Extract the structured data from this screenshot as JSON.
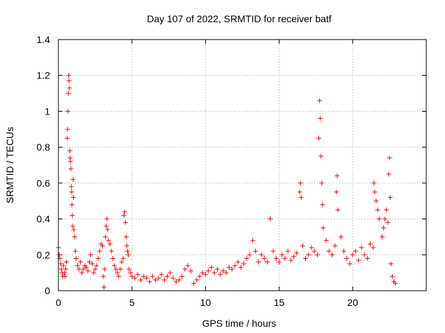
{
  "chart_data": {
    "type": "scatter",
    "title": "Day 107 of 2022, SRMTID for receiver batf",
    "xlabel": "GPS time / hours",
    "ylabel": "SRMTID / TECUs",
    "xlim": [
      0,
      25
    ],
    "ylim": [
      0,
      1.4
    ],
    "xticks": [
      "0",
      "5",
      "10",
      "15",
      "20"
    ],
    "yticks": [
      "0",
      "0.2",
      "0.4",
      "0.6",
      "0.8",
      "1",
      "1.2",
      "1.4"
    ],
    "grid": true,
    "marker": "plus",
    "color": "#ff0000",
    "series": [
      {
        "name": "SRMTID",
        "points": [
          [
            0.0,
            0.24
          ],
          [
            0.05,
            0.2
          ],
          [
            0.1,
            0.18
          ],
          [
            0.15,
            0.15
          ],
          [
            0.2,
            0.12
          ],
          [
            0.25,
            0.1
          ],
          [
            0.3,
            0.08
          ],
          [
            0.35,
            0.14
          ],
          [
            0.4,
            0.1
          ],
          [
            0.45,
            0.08
          ],
          [
            0.5,
            0.12
          ],
          [
            0.55,
            0.16
          ],
          [
            0.6,
            0.85
          ],
          [
            0.62,
            0.9
          ],
          [
            0.65,
            1.0
          ],
          [
            0.68,
            1.1
          ],
          [
            0.7,
            1.2
          ],
          [
            0.72,
            1.17
          ],
          [
            0.75,
            1.13
          ],
          [
            0.78,
            0.78
          ],
          [
            0.8,
            0.74
          ],
          [
            0.82,
            0.72
          ],
          [
            0.85,
            0.68
          ],
          [
            0.88,
            0.58
          ],
          [
            0.9,
            0.55
          ],
          [
            0.92,
            0.48
          ],
          [
            0.95,
            0.42
          ],
          [
            0.98,
            0.36
          ],
          [
            1.0,
            0.62
          ],
          [
            1.02,
            0.52
          ],
          [
            1.05,
            0.34
          ],
          [
            1.1,
            0.3
          ],
          [
            1.15,
            0.22
          ],
          [
            1.2,
            0.18
          ],
          [
            1.3,
            0.14
          ],
          [
            1.4,
            0.12
          ],
          [
            1.5,
            0.16
          ],
          [
            1.6,
            0.1
          ],
          [
            1.7,
            0.12
          ],
          [
            1.8,
            0.14
          ],
          [
            1.9,
            0.13
          ],
          [
            2.0,
            0.11
          ],
          [
            2.1,
            0.16
          ],
          [
            2.2,
            0.2
          ],
          [
            2.3,
            0.15
          ],
          [
            2.4,
            0.1
          ],
          [
            2.5,
            0.12
          ],
          [
            2.6,
            0.14
          ],
          [
            2.7,
            0.18
          ],
          [
            2.8,
            0.22
          ],
          [
            2.9,
            0.26
          ],
          [
            3.0,
            0.25
          ],
          [
            3.05,
            0.08
          ],
          [
            3.1,
            0.02
          ],
          [
            3.15,
            0.12
          ],
          [
            3.2,
            0.3
          ],
          [
            3.25,
            0.36
          ],
          [
            3.3,
            0.4
          ],
          [
            3.35,
            0.34
          ],
          [
            3.4,
            0.28
          ],
          [
            3.5,
            0.26
          ],
          [
            3.6,
            0.22
          ],
          [
            3.7,
            0.18
          ],
          [
            3.8,
            0.14
          ],
          [
            3.9,
            0.12
          ],
          [
            4.0,
            0.1
          ],
          [
            4.1,
            0.08
          ],
          [
            4.2,
            0.12
          ],
          [
            4.3,
            0.16
          ],
          [
            4.4,
            0.18
          ],
          [
            4.45,
            0.42
          ],
          [
            4.5,
            0.44
          ],
          [
            4.55,
            0.38
          ],
          [
            4.6,
            0.3
          ],
          [
            4.65,
            0.25
          ],
          [
            4.7,
            0.22
          ],
          [
            4.75,
            0.2
          ],
          [
            4.8,
            0.12
          ],
          [
            4.9,
            0.1
          ],
          [
            5.0,
            0.08
          ],
          [
            5.2,
            0.07
          ],
          [
            5.4,
            0.09
          ],
          [
            5.6,
            0.06
          ],
          [
            5.8,
            0.08
          ],
          [
            6.0,
            0.07
          ],
          [
            6.2,
            0.05
          ],
          [
            6.4,
            0.08
          ],
          [
            6.6,
            0.06
          ],
          [
            6.8,
            0.07
          ],
          [
            7.0,
            0.09
          ],
          [
            7.2,
            0.06
          ],
          [
            7.4,
            0.08
          ],
          [
            7.6,
            0.1
          ],
          [
            7.8,
            0.07
          ],
          [
            8.0,
            0.05
          ],
          [
            8.2,
            0.06
          ],
          [
            8.4,
            0.08
          ],
          [
            8.6,
            0.12
          ],
          [
            8.8,
            0.14
          ],
          [
            9.0,
            0.11
          ],
          [
            9.2,
            0.04
          ],
          [
            9.4,
            0.06
          ],
          [
            9.6,
            0.08
          ],
          [
            9.8,
            0.1
          ],
          [
            10.0,
            0.09
          ],
          [
            10.2,
            0.11
          ],
          [
            10.4,
            0.13
          ],
          [
            10.6,
            0.1
          ],
          [
            10.8,
            0.12
          ],
          [
            11.0,
            0.09
          ],
          [
            11.2,
            0.11
          ],
          [
            11.4,
            0.1
          ],
          [
            11.6,
            0.13
          ],
          [
            11.8,
            0.12
          ],
          [
            12.0,
            0.14
          ],
          [
            12.2,
            0.16
          ],
          [
            12.4,
            0.13
          ],
          [
            12.6,
            0.15
          ],
          [
            12.8,
            0.18
          ],
          [
            13.0,
            0.2
          ],
          [
            13.2,
            0.28
          ],
          [
            13.4,
            0.22
          ],
          [
            13.6,
            0.16
          ],
          [
            13.8,
            0.2
          ],
          [
            14.0,
            0.18
          ],
          [
            14.2,
            0.16
          ],
          [
            14.4,
            0.4
          ],
          [
            14.6,
            0.22
          ],
          [
            14.8,
            0.18
          ],
          [
            15.0,
            0.16
          ],
          [
            15.2,
            0.2
          ],
          [
            15.4,
            0.18
          ],
          [
            15.6,
            0.22
          ],
          [
            15.8,
            0.17
          ],
          [
            16.0,
            0.19
          ],
          [
            16.2,
            0.21
          ],
          [
            16.4,
            0.55
          ],
          [
            16.45,
            0.6
          ],
          [
            16.5,
            0.52
          ],
          [
            16.6,
            0.25
          ],
          [
            16.8,
            0.18
          ],
          [
            17.0,
            0.2
          ],
          [
            17.2,
            0.24
          ],
          [
            17.4,
            0.22
          ],
          [
            17.6,
            0.2
          ],
          [
            17.7,
            0.85
          ],
          [
            17.75,
            1.06
          ],
          [
            17.8,
            0.96
          ],
          [
            17.85,
            0.75
          ],
          [
            17.9,
            0.6
          ],
          [
            17.95,
            0.48
          ],
          [
            18.0,
            0.35
          ],
          [
            18.2,
            0.28
          ],
          [
            18.4,
            0.22
          ],
          [
            18.6,
            0.2
          ],
          [
            18.8,
            0.25
          ],
          [
            18.9,
            0.55
          ],
          [
            18.95,
            0.64
          ],
          [
            19.0,
            0.45
          ],
          [
            19.2,
            0.3
          ],
          [
            19.4,
            0.22
          ],
          [
            19.6,
            0.18
          ],
          [
            19.8,
            0.15
          ],
          [
            20.0,
            0.2
          ],
          [
            20.2,
            0.22
          ],
          [
            20.4,
            0.17
          ],
          [
            20.6,
            0.24
          ],
          [
            20.8,
            0.2
          ],
          [
            21.0,
            0.18
          ],
          [
            21.2,
            0.26
          ],
          [
            21.4,
            0.24
          ],
          [
            21.45,
            0.6
          ],
          [
            21.5,
            0.55
          ],
          [
            21.6,
            0.5
          ],
          [
            21.7,
            0.45
          ],
          [
            21.8,
            0.4
          ],
          [
            22.0,
            0.3
          ],
          [
            22.1,
            0.35
          ],
          [
            22.2,
            0.4
          ],
          [
            22.3,
            0.45
          ],
          [
            22.4,
            0.38
          ],
          [
            22.45,
            0.65
          ],
          [
            22.5,
            0.74
          ],
          [
            22.55,
            0.52
          ],
          [
            22.6,
            0.15
          ],
          [
            22.7,
            0.08
          ],
          [
            22.8,
            0.05
          ],
          [
            22.9,
            0.04
          ]
        ]
      }
    ]
  }
}
